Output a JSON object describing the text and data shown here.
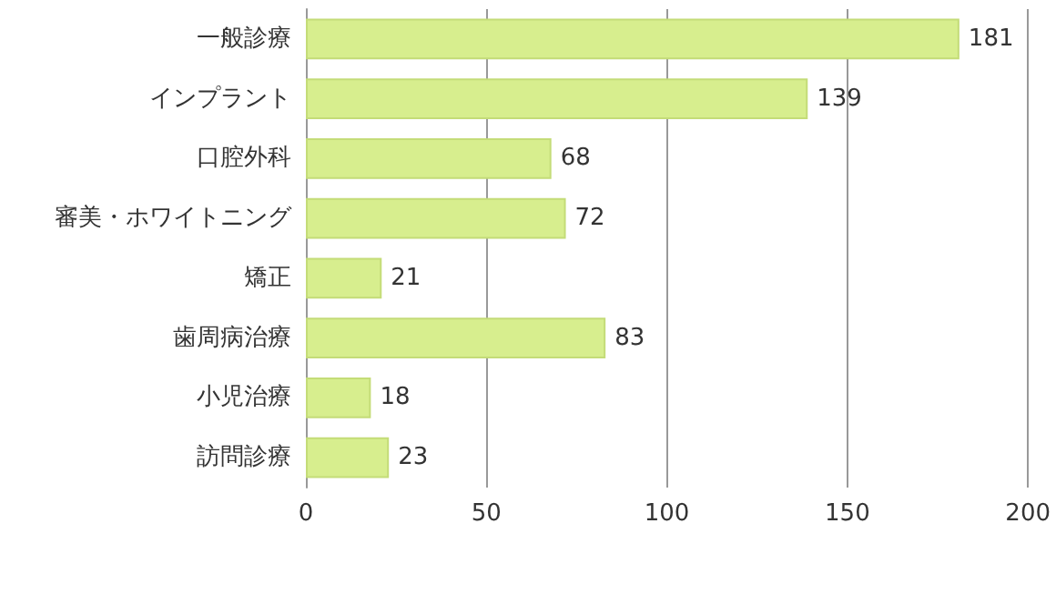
{
  "chart_data": {
    "type": "bar",
    "orientation": "horizontal",
    "categories": [
      "一般診療",
      "インプラント",
      "口腔外科",
      "審美・ホワイトニング",
      "矯正",
      "歯周病治療",
      "小児治療",
      "訪問診療"
    ],
    "values": [
      181,
      139,
      68,
      72,
      21,
      83,
      18,
      23
    ],
    "color": "#d7ee8e",
    "xlim": [
      0,
      200
    ],
    "xticks": [
      0,
      50,
      100,
      150,
      200
    ],
    "grid": "x",
    "data_labels": true
  }
}
